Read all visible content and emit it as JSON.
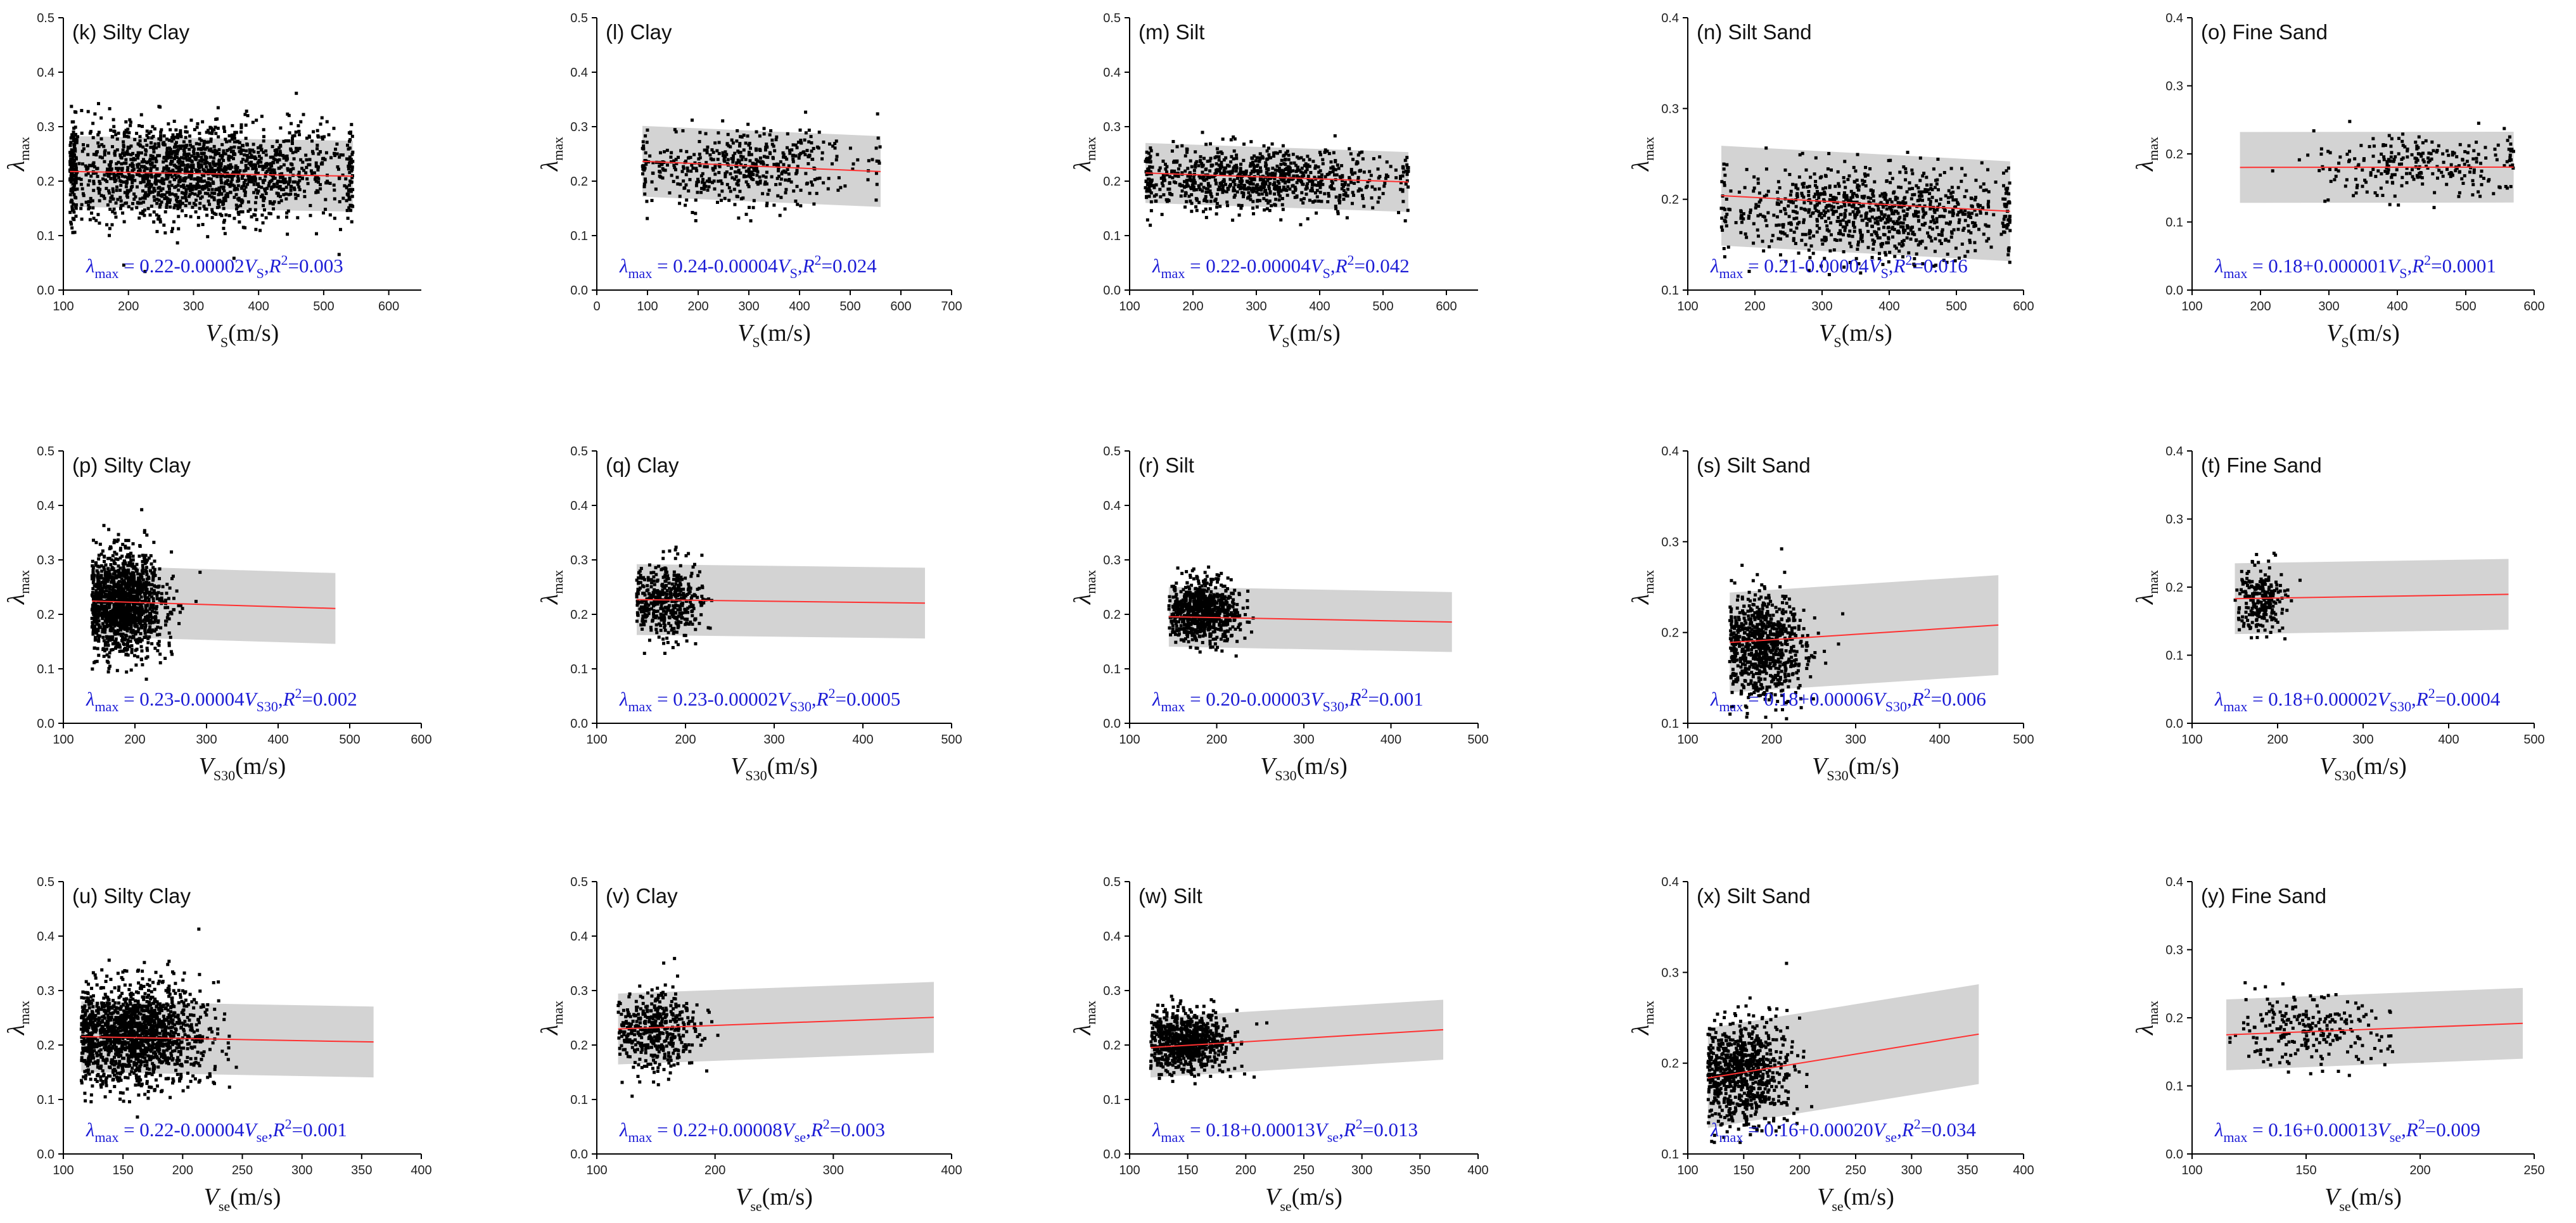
{
  "chart_data": [
    {
      "type": "scatter",
      "panel": "(k) Silty Clay",
      "xvar": "S",
      "xlim": [
        100,
        650
      ],
      "ylim": [
        0,
        0.5
      ],
      "xticks": [
        100,
        200,
        300,
        400,
        500,
        600
      ],
      "yticks": [
        0,
        0.1,
        0.2,
        0.3,
        0.4,
        0.5
      ],
      "fit": {
        "intercept": 0.22,
        "slope": -2e-05
      },
      "band_halfwidth": 0.065,
      "equation": {
        "intercept": "0.22",
        "slope": "-0.00002",
        "r2": "0.003"
      },
      "point_count": 1800,
      "point_cloud": {
        "x_center": 300,
        "x_spread": 130,
        "y_center": 0.215,
        "y_spread": 0.045,
        "x_min": 110,
        "x_max": 545
      }
    },
    {
      "type": "scatter",
      "panel": "(l) Clay",
      "xvar": "S",
      "xlim": [
        0,
        700
      ],
      "ylim": [
        0,
        0.5
      ],
      "xticks": [
        0,
        100,
        200,
        300,
        400,
        500,
        600,
        700
      ],
      "yticks": [
        0,
        0.1,
        0.2,
        0.3,
        0.4,
        0.5
      ],
      "fit": {
        "intercept": 0.24,
        "slope": -4e-05
      },
      "band_halfwidth": 0.065,
      "equation": {
        "intercept": "0.24",
        "slope": "-0.00004",
        "r2": "0.024"
      },
      "point_count": 500,
      "point_cloud": {
        "x_center": 290,
        "x_spread": 120,
        "y_center": 0.225,
        "y_spread": 0.035,
        "x_min": 90,
        "x_max": 560
      }
    },
    {
      "type": "scatter",
      "panel": "(m) Silt",
      "xvar": "S",
      "xlim": [
        100,
        650
      ],
      "ylim": [
        0,
        0.5
      ],
      "xticks": [
        100,
        200,
        300,
        400,
        500,
        600
      ],
      "yticks": [
        0,
        0.1,
        0.2,
        0.3,
        0.4,
        0.5
      ],
      "fit": {
        "intercept": 0.22,
        "slope": -4e-05
      },
      "band_halfwidth": 0.055,
      "equation": {
        "intercept": "0.22",
        "slope": "-0.00004",
        "r2": "0.042"
      },
      "point_count": 900,
      "point_cloud": {
        "x_center": 300,
        "x_spread": 110,
        "y_center": 0.205,
        "y_spread": 0.028,
        "x_min": 125,
        "x_max": 540
      }
    },
    {
      "type": "scatter",
      "panel": "(n) Silt Sand",
      "xvar": "S",
      "xlim": [
        100,
        600
      ],
      "ylim": [
        0.1,
        0.4
      ],
      "xticks": [
        100,
        200,
        300,
        400,
        500,
        600
      ],
      "yticks": [
        0.1,
        0.2,
        0.3,
        0.4
      ],
      "fit": {
        "intercept": 0.21,
        "slope": -4e-05
      },
      "band_halfwidth": 0.055,
      "equation": {
        "intercept": "0.21",
        "slope": "-0.00004",
        "r2": "0.016"
      },
      "point_count": 900,
      "point_cloud": {
        "x_center": 380,
        "x_spread": 110,
        "y_center": 0.185,
        "y_spread": 0.025,
        "x_min": 150,
        "x_max": 580
      }
    },
    {
      "type": "scatter",
      "panel": "(o) Fine Sand",
      "xvar": "S",
      "xlim": [
        100,
        600
      ],
      "ylim": [
        0,
        0.4
      ],
      "xticks": [
        100,
        200,
        300,
        400,
        500,
        600
      ],
      "yticks": [
        0,
        0.1,
        0.2,
        0.3,
        0.4
      ],
      "fit": {
        "intercept": 0.18,
        "slope": 1e-06
      },
      "band_halfwidth": 0.052,
      "equation": {
        "intercept": "0.18",
        "slope": "+0.000001",
        "r2": "0.0001"
      },
      "point_count": 260,
      "point_cloud": {
        "x_center": 430,
        "x_spread": 80,
        "y_center": 0.185,
        "y_spread": 0.025,
        "x_min": 170,
        "x_max": 570
      }
    },
    {
      "type": "scatter",
      "panel": "(p) Silty Clay",
      "xvar": "S30",
      "xlim": [
        100,
        600
      ],
      "ylim": [
        0,
        0.5
      ],
      "xticks": [
        100,
        200,
        300,
        400,
        500,
        600
      ],
      "yticks": [
        0,
        0.1,
        0.2,
        0.3,
        0.4,
        0.5
      ],
      "fit": {
        "intercept": 0.23,
        "slope": -4e-05
      },
      "band_halfwidth": 0.065,
      "equation": {
        "intercept": "0.23",
        "slope": "-0.00004",
        "r2": "0.002"
      },
      "point_count": 1400,
      "point_cloud": {
        "x_center": 185,
        "x_spread": 28,
        "y_center": 0.22,
        "y_spread": 0.045,
        "x_min": 140,
        "x_max": 480
      }
    },
    {
      "type": "scatter",
      "panel": "(q) Clay",
      "xvar": "S30",
      "xlim": [
        100,
        500
      ],
      "ylim": [
        0,
        0.5
      ],
      "xticks": [
        100,
        200,
        300,
        400,
        500
      ],
      "yticks": [
        0,
        0.1,
        0.2,
        0.3,
        0.4,
        0.5
      ],
      "fit": {
        "intercept": 0.23,
        "slope": -2e-05
      },
      "band_halfwidth": 0.065,
      "equation": {
        "intercept": "0.23",
        "slope": "-0.00002",
        "r2": "0.0005"
      },
      "point_count": 450,
      "point_cloud": {
        "x_center": 180,
        "x_spread": 20,
        "y_center": 0.225,
        "y_spread": 0.035,
        "x_min": 145,
        "x_max": 470
      }
    },
    {
      "type": "scatter",
      "panel": "(r) Silt",
      "xvar": "S30",
      "xlim": [
        100,
        500
      ],
      "ylim": [
        0,
        0.5
      ],
      "xticks": [
        100,
        200,
        300,
        400,
        500
      ],
      "yticks": [
        0,
        0.1,
        0.2,
        0.3,
        0.4,
        0.5
      ],
      "fit": {
        "intercept": 0.2,
        "slope": -3e-05
      },
      "band_halfwidth": 0.055,
      "equation": {
        "intercept": "0.20",
        "slope": "-0.00003",
        "r2": "0.001"
      },
      "point_count": 800,
      "point_cloud": {
        "x_center": 185,
        "x_spread": 20,
        "y_center": 0.205,
        "y_spread": 0.028,
        "x_min": 145,
        "x_max": 470
      }
    },
    {
      "type": "scatter",
      "panel": "(s) Silt Sand",
      "xvar": "S30",
      "xlim": [
        100,
        500
      ],
      "ylim": [
        0.1,
        0.4
      ],
      "xticks": [
        100,
        200,
        300,
        400,
        500
      ],
      "yticks": [
        0.1,
        0.2,
        0.3,
        0.4
      ],
      "fit": {
        "intercept": 0.18,
        "slope": 6e-05
      },
      "band_halfwidth": 0.055,
      "equation": {
        "intercept": "0.18",
        "slope": "+0.00006",
        "r2": "0.006"
      },
      "point_count": 800,
      "point_cloud": {
        "x_center": 190,
        "x_spread": 25,
        "y_center": 0.185,
        "y_spread": 0.028,
        "x_min": 150,
        "x_max": 470
      }
    },
    {
      "type": "scatter",
      "panel": "(t) Fine Sand",
      "xvar": "S30",
      "xlim": [
        100,
        500
      ],
      "ylim": [
        0,
        0.4
      ],
      "xticks": [
        100,
        200,
        300,
        400,
        500
      ],
      "yticks": [
        0,
        0.1,
        0.2,
        0.3,
        0.4
      ],
      "fit": {
        "intercept": 0.18,
        "slope": 2e-05
      },
      "band_halfwidth": 0.052,
      "equation": {
        "intercept": "0.18",
        "slope": "+0.00002",
        "r2": "0.0004"
      },
      "point_count": 250,
      "point_cloud": {
        "x_center": 180,
        "x_spread": 14,
        "y_center": 0.18,
        "y_spread": 0.025,
        "x_min": 150,
        "x_max": 470
      }
    },
    {
      "type": "scatter",
      "panel": "(u) Silty Clay",
      "xvar": "se",
      "xlim": [
        100,
        400
      ],
      "ylim": [
        0,
        0.5
      ],
      "xticks": [
        100,
        150,
        200,
        250,
        300,
        350,
        400
      ],
      "yticks": [
        0,
        0.1,
        0.2,
        0.3,
        0.4,
        0.5
      ],
      "fit": {
        "intercept": 0.22,
        "slope": -4e-05
      },
      "band_halfwidth": 0.065,
      "equation": {
        "intercept": "0.22",
        "slope": "-0.00004",
        "r2": "0.001"
      },
      "point_count": 1600,
      "point_cloud": {
        "x_center": 160,
        "x_spread": 28,
        "y_center": 0.22,
        "y_spread": 0.045,
        "x_min": 115,
        "x_max": 360
      }
    },
    {
      "type": "scatter",
      "panel": "(v) Clay",
      "xvar": "se",
      "xlim": [
        100,
        400
      ],
      "ylim": [
        0,
        0.5
      ],
      "xticks": [
        100,
        200,
        300,
        400
      ],
      "yticks": [
        0,
        0.1,
        0.2,
        0.3,
        0.4,
        0.5
      ],
      "fit": {
        "intercept": 0.22,
        "slope": 8e-05
      },
      "band_halfwidth": 0.065,
      "equation": {
        "intercept": "0.22",
        "slope": "+0.00008",
        "r2": "0.003"
      },
      "point_count": 450,
      "point_cloud": {
        "x_center": 150,
        "x_spread": 18,
        "y_center": 0.225,
        "y_spread": 0.035,
        "x_min": 118,
        "x_max": 385
      }
    },
    {
      "type": "scatter",
      "panel": "(w) Silt",
      "xvar": "se",
      "xlim": [
        100,
        400
      ],
      "ylim": [
        0,
        0.5
      ],
      "xticks": [
        100,
        150,
        200,
        250,
        300,
        350,
        400
      ],
      "yticks": [
        0,
        0.1,
        0.2,
        0.3,
        0.4,
        0.5
      ],
      "fit": {
        "intercept": 0.18,
        "slope": 0.00013
      },
      "band_halfwidth": 0.055,
      "equation": {
        "intercept": "0.18",
        "slope": "+0.00013",
        "r2": "0.013"
      },
      "point_count": 800,
      "point_cloud": {
        "x_center": 150,
        "x_spread": 18,
        "y_center": 0.205,
        "y_spread": 0.028,
        "x_min": 118,
        "x_max": 370
      }
    },
    {
      "type": "scatter",
      "panel": "(x) Silt Sand",
      "xvar": "se",
      "xlim": [
        100,
        400
      ],
      "ylim": [
        0.1,
        0.4
      ],
      "xticks": [
        100,
        150,
        200,
        250,
        300,
        350,
        400
      ],
      "yticks": [
        0.1,
        0.2,
        0.3,
        0.4
      ],
      "fit": {
        "intercept": 0.16,
        "slope": 0.0002
      },
      "band_halfwidth": 0.055,
      "equation": {
        "intercept": "0.16",
        "slope": "+0.00020",
        "r2": "0.034"
      },
      "point_count": 800,
      "point_cloud": {
        "x_center": 150,
        "x_spread": 20,
        "y_center": 0.19,
        "y_spread": 0.028,
        "x_min": 118,
        "x_max": 360
      }
    },
    {
      "type": "scatter",
      "panel": "(y) Fine Sand",
      "xvar": "se",
      "xlim": [
        100,
        250
      ],
      "ylim": [
        0,
        0.4
      ],
      "xticks": [
        100,
        150,
        200,
        250
      ],
      "yticks": [
        0,
        0.1,
        0.2,
        0.3,
        0.4
      ],
      "fit": {
        "intercept": 0.16,
        "slope": 0.00013
      },
      "band_halfwidth": 0.052,
      "equation": {
        "intercept": "0.16",
        "slope": "+0.00013",
        "r2": "0.009"
      },
      "point_count": 240,
      "point_cloud": {
        "x_center": 150,
        "x_spread": 18,
        "y_center": 0.18,
        "y_spread": 0.025,
        "x_min": 115,
        "x_max": 245
      }
    }
  ],
  "common": {
    "ylabel_symbol": "λ",
    "ylabel_sub": "max",
    "xlabel_symbol": "V",
    "xlabel_unit": "(m/s)",
    "equation_lambda": "λ",
    "equation_sub": "max",
    "equation_V": "V",
    "equation_R": "R",
    "equation_R_sup": "2",
    "colors": {
      "points": "#000000",
      "band": "#d3d3d3",
      "fit_line": "#ff3030",
      "equation": "#1c1cd6",
      "axis": "#000000"
    }
  }
}
